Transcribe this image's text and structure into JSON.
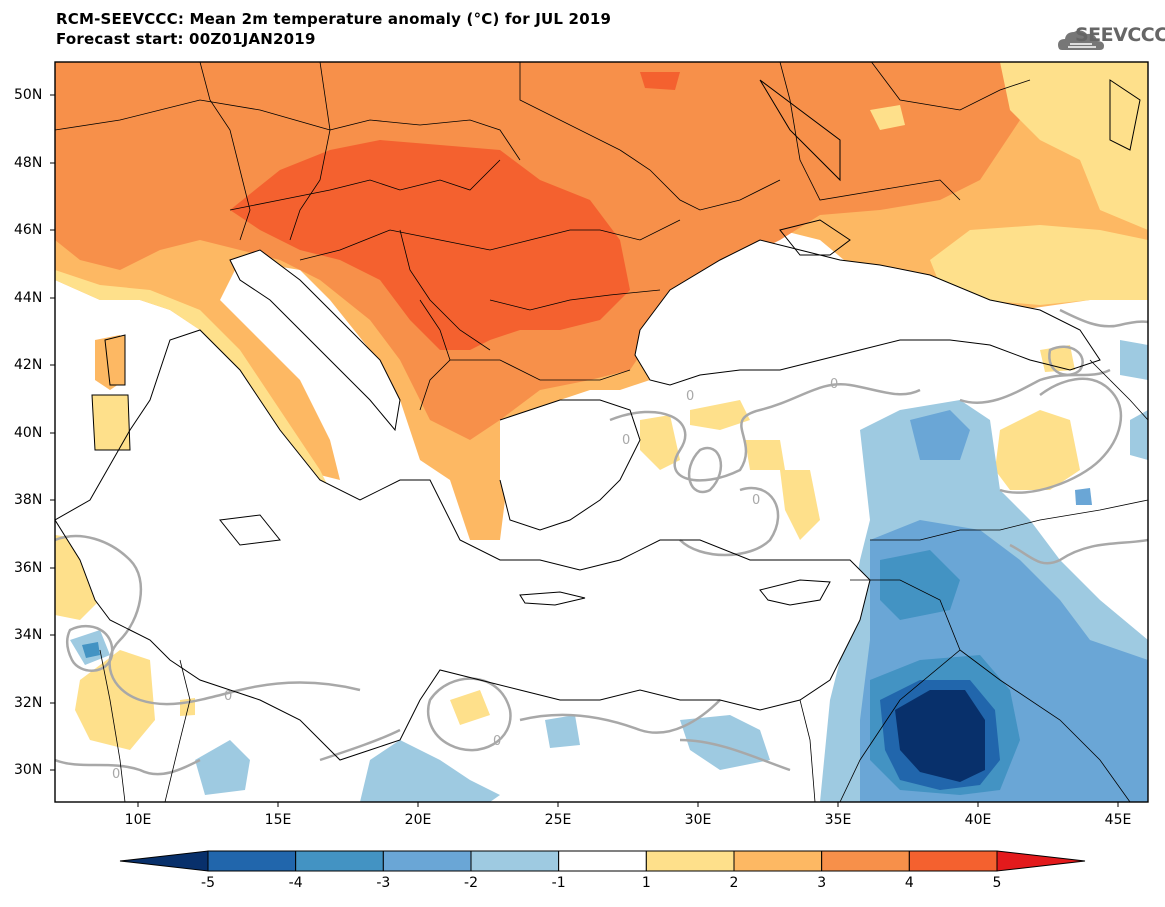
{
  "title_line1": "RCM-SEEVCCC: Mean 2m temperature anomaly (°C) for JUL 2019",
  "title_line2": "Forecast start: 00Z01JAN2019",
  "logo": {
    "text": "SEEVCCC",
    "icon": "cloud-icon"
  },
  "map": {
    "lat_labels": [
      "50N",
      "48N",
      "46N",
      "44N",
      "42N",
      "40N",
      "38N",
      "36N",
      "34N",
      "32N",
      "30N"
    ],
    "lon_labels": [
      "10E",
      "15E",
      "20E",
      "25E",
      "30E",
      "35E",
      "40E",
      "45E"
    ],
    "contour_label": "0"
  },
  "colorbar": {
    "labels": [
      "-5",
      "-4",
      "-3",
      "-2",
      "-1",
      "1",
      "2",
      "3",
      "4",
      "5"
    ],
    "colors": [
      "#08306b",
      "#2166ac",
      "#4393c3",
      "#6aa6d6",
      "#9ecae1",
      "#ffffff",
      "#fee08b",
      "#fdb863",
      "#f7904a",
      "#f4612f",
      "#e31a1c"
    ]
  },
  "colors": {
    "land_warm_1": "#fee08b",
    "land_warm_2": "#fdb863",
    "land_warm_3": "#f7904a",
    "land_warm_4": "#f4612f",
    "cool_1": "#9ecae1",
    "cool_2": "#6aa6d6",
    "cool_3": "#4393c3",
    "cool_4": "#2166ac",
    "cool_5": "#08306b",
    "contour_zero": "#a8a8a8"
  }
}
